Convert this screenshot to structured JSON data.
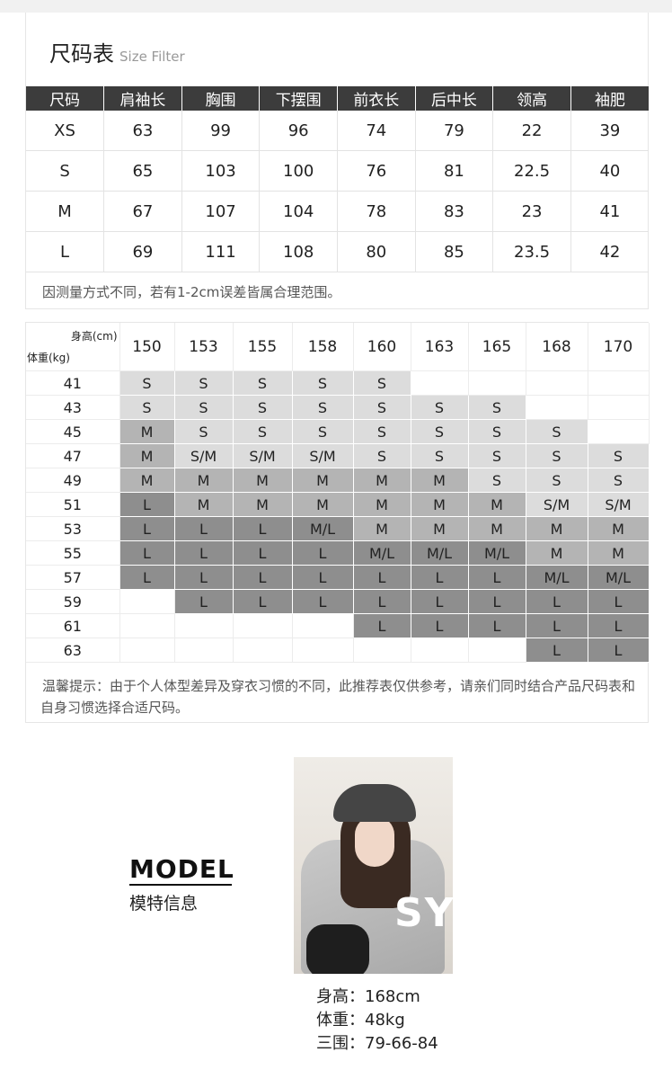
{
  "size_chart": {
    "title": "尺码表",
    "subtitle": "Size Filter",
    "headers": [
      "尺码",
      "肩袖长",
      "胸围",
      "下摆围",
      "前衣长",
      "后中长",
      "领高",
      "袖肥"
    ],
    "rows": [
      [
        "XS",
        "63",
        "99",
        "96",
        "74",
        "79",
        "22",
        "39"
      ],
      [
        "S",
        "65",
        "103",
        "100",
        "76",
        "81",
        "22.5",
        "40"
      ],
      [
        "M",
        "67",
        "107",
        "104",
        "78",
        "83",
        "23",
        "41"
      ],
      [
        "L",
        "69",
        "111",
        "108",
        "80",
        "85",
        "23.5",
        "42"
      ]
    ],
    "note": "因测量方式不同，若有1-2cm误差皆属合理范围。"
  },
  "recommendation": {
    "height_label": "身高(cm)",
    "weight_label": "体重(kg)",
    "heights": [
      "150",
      "153",
      "155",
      "158",
      "160",
      "163",
      "165",
      "168",
      "170"
    ],
    "weights": [
      "41",
      "43",
      "45",
      "47",
      "49",
      "51",
      "53",
      "55",
      "57",
      "59",
      "61",
      "63"
    ],
    "grid": [
      [
        "S",
        "S",
        "S",
        "S",
        "S",
        "",
        "",
        "",
        ""
      ],
      [
        "S",
        "S",
        "S",
        "S",
        "S",
        "S",
        "S",
        "",
        ""
      ],
      [
        "M",
        "S",
        "S",
        "S",
        "S",
        "S",
        "S",
        "S",
        ""
      ],
      [
        "M",
        "S/M",
        "S/M",
        "S/M",
        "S",
        "S",
        "S",
        "S",
        "S"
      ],
      [
        "M",
        "M",
        "M",
        "M",
        "M",
        "M",
        "S",
        "S",
        "S"
      ],
      [
        "L",
        "M",
        "M",
        "M",
        "M",
        "M",
        "M",
        "S/M",
        "S/M"
      ],
      [
        "L",
        "L",
        "L",
        "M/L",
        "M",
        "M",
        "M",
        "M",
        "M"
      ],
      [
        "L",
        "L",
        "L",
        "L",
        "M/L",
        "M/L",
        "M/L",
        "M",
        "M"
      ],
      [
        "L",
        "L",
        "L",
        "L",
        "L",
        "L",
        "L",
        "M/L",
        "M/L"
      ],
      [
        "",
        "L",
        "L",
        "L",
        "L",
        "L",
        "L",
        "L",
        "L"
      ],
      [
        "",
        "",
        "",
        "",
        "L",
        "L",
        "L",
        "L",
        "L"
      ],
      [
        "",
        "",
        "",
        "",
        "",
        "",
        "",
        "L",
        "L"
      ]
    ],
    "shade": [
      [
        1,
        1,
        1,
        1,
        1,
        0,
        0,
        0,
        0
      ],
      [
        1,
        1,
        1,
        1,
        1,
        1,
        1,
        0,
        0
      ],
      [
        2,
        1,
        1,
        1,
        1,
        1,
        1,
        1,
        0
      ],
      [
        2,
        1,
        1,
        1,
        1,
        1,
        1,
        1,
        1
      ],
      [
        2,
        2,
        2,
        2,
        2,
        2,
        1,
        1,
        1
      ],
      [
        3,
        2,
        2,
        2,
        2,
        2,
        2,
        1,
        1
      ],
      [
        3,
        3,
        3,
        3,
        2,
        2,
        2,
        2,
        2
      ],
      [
        3,
        3,
        3,
        3,
        3,
        3,
        3,
        2,
        2
      ],
      [
        3,
        3,
        3,
        3,
        3,
        3,
        3,
        3,
        3
      ],
      [
        0,
        3,
        3,
        3,
        3,
        3,
        3,
        3,
        3
      ],
      [
        0,
        0,
        0,
        0,
        3,
        3,
        3,
        3,
        3
      ],
      [
        0,
        0,
        0,
        0,
        0,
        0,
        0,
        3,
        3
      ]
    ],
    "note": "温馨提示：由于个人体型差异及穿衣习惯的不同，此推荐表仅供参考，请亲们同时结合产品尺码表和自身习惯选择合适尺码。"
  },
  "model": {
    "title_en": "MODEL",
    "title_cn": "模特信息",
    "photo_text": "SY",
    "stats": [
      {
        "label": "身高：",
        "value": "168cm"
      },
      {
        "label": "体重：",
        "value": "48kg"
      },
      {
        "label": "三围：",
        "value": "79-66-84"
      }
    ]
  }
}
